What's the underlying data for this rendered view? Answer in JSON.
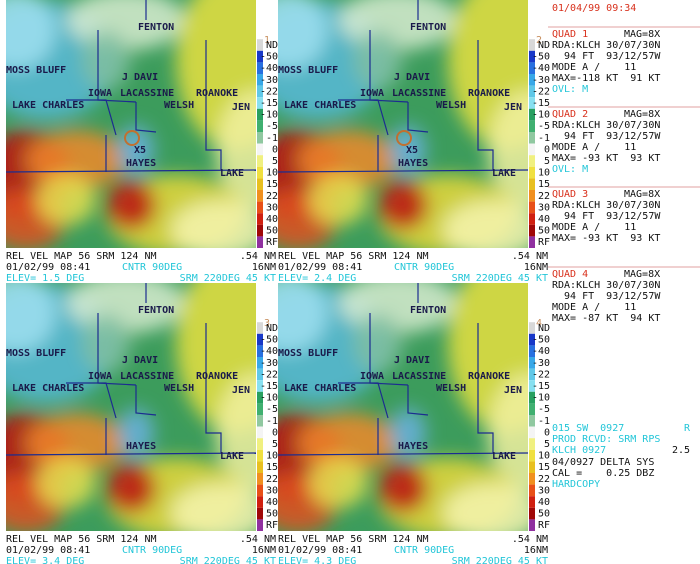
{
  "header": {
    "datetime": "01/04/99 09:34"
  },
  "places": [
    "FENTON",
    "MOSS BLUFF",
    "J DAVI",
    "IOWA",
    "LACASSINE",
    "ROANOKE",
    "WELSH",
    "JEN",
    "LAKE CHARLES",
    "HAYES",
    "LAKE"
  ],
  "scale_labels": [
    "ND",
    "-50",
    "-40",
    "-30",
    "-22",
    "-15",
    "-10",
    "-5",
    "-1",
    "0",
    "5",
    "10",
    "15",
    "22",
    "30",
    "40",
    "50",
    "RF"
  ],
  "quadrants": [
    {
      "number": "1",
      "marker": "X5",
      "product": "REL VEL MAP 56 SRM 124 NM",
      "resolution": ".54 NM",
      "date": "01/02/99 08:41",
      "center": "CNTR  90DEG",
      "range": "16NM",
      "elevation": "ELEV=  1.5 DEG",
      "storm_motion": "SRM 220DEG  45 KT"
    },
    {
      "number": "2",
      "marker": "X5",
      "product": "REL VEL MAP 56 SRM 124 NM",
      "resolution": ".54 NM",
      "date": "01/02/99 08:41",
      "center": "CNTR  90DEG",
      "range": "16NM",
      "elevation": "ELEV=  2.4 DEG",
      "storm_motion": "SRM 220DEG  45 KT"
    },
    {
      "number": "3",
      "product": "REL VEL MAP 56 SRM 124 NM",
      "resolution": ".54 NM",
      "date": "01/02/99 08:41",
      "center": "CNTR  90DEG",
      "range": "16NM",
      "elevation": "ELEV=  3.4 DEG",
      "storm_motion": "SRM 220DEG  45 KT"
    },
    {
      "number": "4",
      "product": "REL VEL MAP 56 SRM 124 NM",
      "resolution": ".54 NM",
      "date": "01/02/99 08:41",
      "center": "CNTR  90DEG",
      "range": "16NM",
      "elevation": "ELEV=  4.3 DEG",
      "storm_motion": "SRM 220DEG  45 KT"
    }
  ],
  "info": [
    {
      "quad": "QUAD 1",
      "mag": "MAG=8X",
      "lines": [
        "RDA:KLCH 30/07/30N",
        "  94 FT  93/12/57W",
        "MODE A /    11",
        "MAX=-118 KT  91 KT"
      ],
      "overlay": "OVL: M"
    },
    {
      "quad": "QUAD 2",
      "mag": "MAG=8X",
      "lines": [
        "RDA:KLCH 30/07/30N",
        "  94 FT  93/12/57W",
        "MODE A /    11",
        "MAX= -93 KT  93 KT"
      ],
      "overlay": "OVL: M"
    },
    {
      "quad": "QUAD 3",
      "mag": "MAG=8X",
      "lines": [
        "RDA:KLCH 30/07/30N",
        "  94 FT  93/12/57W",
        "MODE A /    11",
        "MAX= -93 KT  93 KT"
      ]
    },
    {
      "quad": "QUAD 4",
      "mag": "MAG=8X",
      "lines": [
        "RDA:KLCH 30/07/30N",
        "  94 FT  93/12/57W",
        "MODE A /    11",
        "MAX= -87 KT  94 KT"
      ]
    }
  ],
  "status": {
    "product": "015 SW  0927",
    "flag": "R",
    "received": "PROD RCVD: SRM RPS",
    "site": "KLCH 0927",
    "value": "2.5",
    "system": "04/0927 DELTA SYS",
    "calibration": "CAL =    0.25 DBZ",
    "hardcopy": "HARDCOPY"
  }
}
